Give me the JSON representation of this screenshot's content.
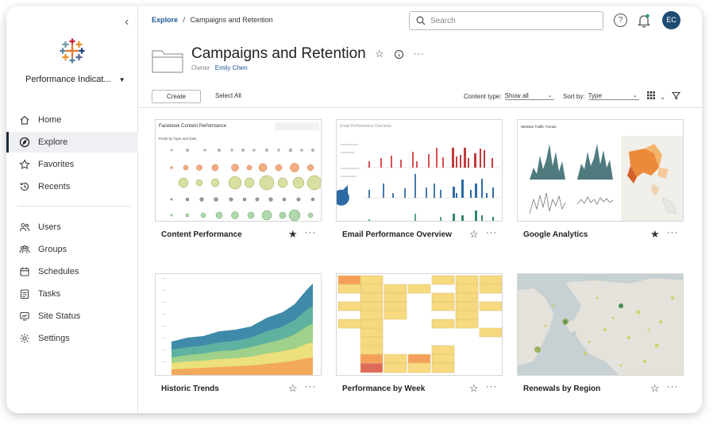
{
  "breadcrumb": {
    "root": "Explore",
    "separator": "/",
    "current": "Campaigns and Retention"
  },
  "search": {
    "placeholder": "Search"
  },
  "user": {
    "initials": "EC"
  },
  "sidebar": {
    "site_name": "Performance Indicat...",
    "items": [
      {
        "label": "Home",
        "icon": "home-icon",
        "active": false
      },
      {
        "label": "Explore",
        "icon": "compass-icon",
        "active": true
      },
      {
        "label": "Favorites",
        "icon": "star-outline-icon",
        "active": false
      },
      {
        "label": "Recents",
        "icon": "history-icon",
        "active": false
      },
      {
        "label": "Users",
        "icon": "users-icon",
        "active": false
      },
      {
        "label": "Groups",
        "icon": "groups-icon",
        "active": false
      },
      {
        "label": "Schedules",
        "icon": "calendar-icon",
        "active": false
      },
      {
        "label": "Tasks",
        "icon": "tasks-icon",
        "active": false
      },
      {
        "label": "Site Status",
        "icon": "site-status-icon",
        "active": false
      },
      {
        "label": "Settings",
        "icon": "gear-icon",
        "active": false
      }
    ]
  },
  "project": {
    "title": "Campaigns and Retention",
    "owner_label": "Owner",
    "owner_name": "Emily Chen"
  },
  "toolbar": {
    "create_label": "Create",
    "select_all_label": "Select All",
    "content_type_label": "Content type:",
    "content_type_value": "Show all",
    "sort_label": "Sort by:",
    "sort_value": "Type"
  },
  "cards": [
    {
      "name": "Content Performance",
      "favorite": true,
      "thumb_title": "Facebook Content Performance",
      "thumb_subtitle": "Posts by Type and Date"
    },
    {
      "name": "Email Performance Overview",
      "favorite": false,
      "thumb_title": "Email Performance Overview"
    },
    {
      "name": "Google Analytics",
      "favorite": true,
      "thumb_title": "Website Traffic Trends"
    },
    {
      "name": "Historic Trends",
      "favorite": false
    },
    {
      "name": "Performance by Week",
      "favorite": false
    },
    {
      "name": "Renewals by Region",
      "favorite": false
    }
  ],
  "colors": {
    "accent_blue": "#1f5a96",
    "avatar_bg": "#1f4c73",
    "nav_active_bar": "#1f2d3d"
  }
}
